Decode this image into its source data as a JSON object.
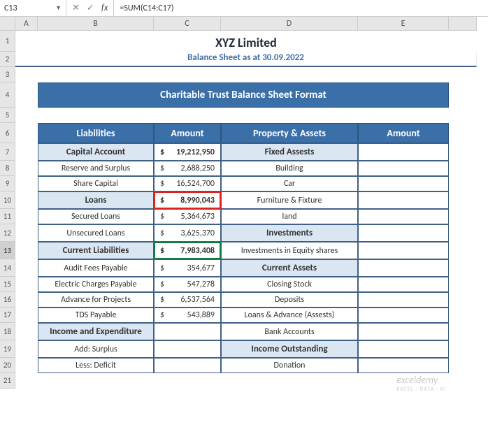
{
  "formula": {
    "cellRef": "C13",
    "text": "=SUM(C14:C17)"
  },
  "header": {
    "company": "XYZ Limited",
    "subtitle": "Balance Sheet as at 30.09.2022"
  },
  "section": "Charitable Trust Balance Sheet Format",
  "cols": [
    "A",
    "B",
    "C",
    "D",
    "E"
  ],
  "table": {
    "headers": {
      "liab": "Liabilities",
      "amt1": "Amount",
      "assets": "Property & Assets",
      "amt2": "Amount"
    },
    "rows": [
      {
        "r": 7,
        "l": "Capital Account",
        "a1": "19,212,950",
        "cat1": true,
        "p": "Fixed Assests",
        "cat2": true
      },
      {
        "r": 8,
        "l": "Reserve and Surplus",
        "a1": "2,688,250",
        "cat1": false,
        "p": "Building",
        "cat2": false
      },
      {
        "r": 9,
        "l": "Share Capital",
        "a1": "16,524,700",
        "cat1": false,
        "p": "Car",
        "cat2": false
      },
      {
        "r": 10,
        "l": "Loans",
        "a1": "8,990,043",
        "cat1": true,
        "p": "Furniture & Fixture",
        "cat2": false,
        "red": true
      },
      {
        "r": 11,
        "l": "Secured Loans",
        "a1": "5,364,673",
        "cat1": false,
        "p": "land",
        "cat2": false
      },
      {
        "r": 12,
        "l": "Unsecured Loans",
        "a1": "3,625,370",
        "cat1": false,
        "p": "Investments",
        "cat2": true
      },
      {
        "r": 13,
        "l": "Current Liabilities",
        "a1": "7,983,408",
        "cat1": true,
        "p": "Investments in Equity shares",
        "cat2": false,
        "red": true,
        "sel": true
      },
      {
        "r": 14,
        "l": "Audit Fees Payable",
        "a1": "354,677",
        "cat1": false,
        "p": "Current Assets",
        "cat2": true
      },
      {
        "r": 15,
        "l": "Electric Charges Payable",
        "a1": "547,278",
        "cat1": false,
        "p": "Closing Stock",
        "cat2": false
      },
      {
        "r": 16,
        "l": "Advance for Projects",
        "a1": "6,537,564",
        "cat1": false,
        "p": "Deposits",
        "cat2": false
      },
      {
        "r": 17,
        "l": "TDS Payable",
        "a1": "543,889",
        "cat1": false,
        "p": "Loans & Advance (Assests)",
        "cat2": false
      },
      {
        "r": 18,
        "l": "Income and Expenditure",
        "a1": "",
        "cat1": true,
        "p": "Bank Accounts",
        "cat2": false
      },
      {
        "r": 19,
        "l": "Add: Surplus",
        "a1": "",
        "cat1": false,
        "p": "Income Outstanding",
        "cat2": true
      },
      {
        "r": 20,
        "l": "Less: Deficit",
        "a1": "",
        "cat1": false,
        "p": "Donation",
        "cat2": false
      }
    ]
  },
  "watermark": {
    "main": "exceldemy",
    "sub": "EXCEL · DATA · BI"
  },
  "colors": {
    "headerBlue": "#3b6fa8",
    "lightBlue": "#dae7f3",
    "borderBlue": "#406088",
    "red": "#d22",
    "selGreen": "#107c41"
  }
}
